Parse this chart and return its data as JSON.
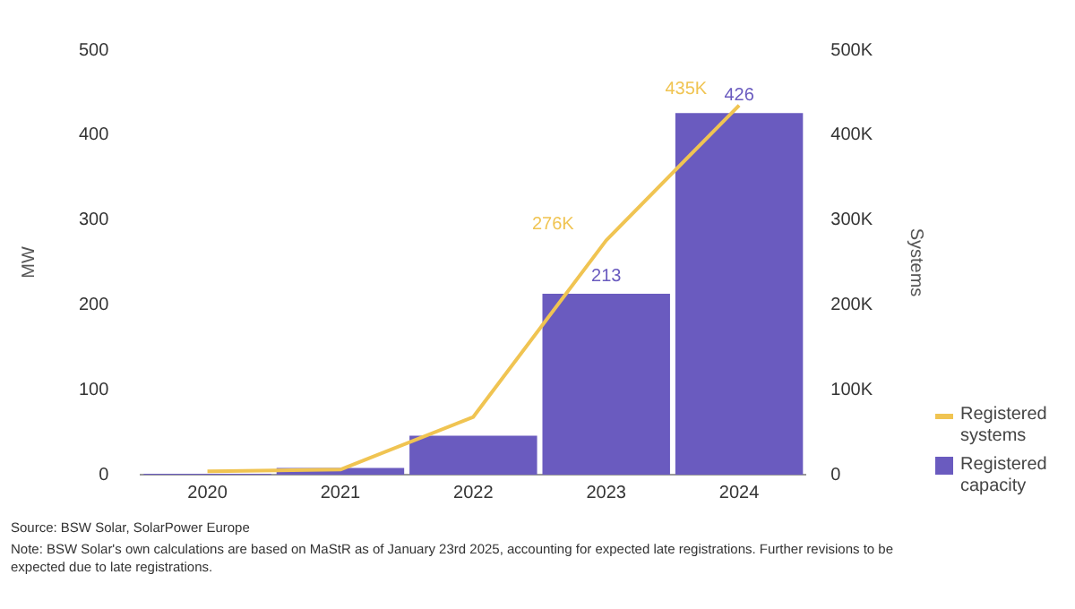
{
  "chart_data": {
    "type": "bar",
    "ylabel": "MW",
    "y2label": "Systems",
    "categories": [
      "2020",
      "2021",
      "2022",
      "2023",
      "2024"
    ],
    "series": [
      {
        "name": "Registered capacity",
        "color": "#6a5bbf",
        "values": [
          1,
          8,
          46,
          213,
          426
        ],
        "value_labels": [
          null,
          null,
          null,
          "213",
          "426"
        ]
      },
      {
        "name": "Registered systems",
        "type": "line",
        "axis": "y2",
        "color": "#f0c452",
        "values": [
          4000,
          6000,
          68000,
          276000,
          435000
        ],
        "value_labels": [
          null,
          null,
          null,
          "276K",
          "435K"
        ]
      }
    ],
    "ylim": [
      0,
      500
    ],
    "yticks": [
      0,
      100,
      200,
      300,
      400,
      500
    ],
    "y2lim": [
      0,
      500000
    ],
    "y2ticks": [
      0,
      {
        "value": 100000,
        "label": "100K"
      },
      {
        "value": 200000,
        "label": "200K"
      },
      {
        "value": 300000,
        "label": "300K"
      },
      {
        "value": 400000,
        "label": "400K"
      },
      {
        "value": 500000,
        "label": "500K"
      }
    ],
    "legend": "bottom right",
    "annotations": [
      "Source: BSW Solar, SolarPower Europe",
      "Note:  BSW Solar's own calculations are based on MaStR as of January 23rd 2025, accounting for expected late registrations. Further revisions to be expected due to late registrations."
    ]
  }
}
